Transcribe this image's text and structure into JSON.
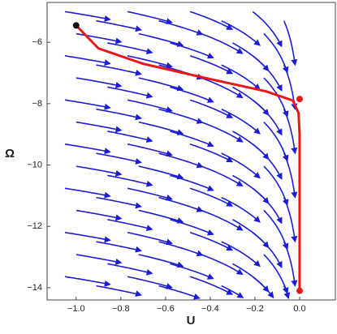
{
  "chart_data": {
    "type": "streamplot",
    "xlabel": "U",
    "ylabel": "Ω",
    "xlim": [
      -1.13,
      0.16
    ],
    "ylim": [
      -14.4,
      -4.7
    ],
    "xticks": [
      {
        "value": -1,
        "label": "−1.0"
      },
      {
        "value": -0.8,
        "label": "−0.8"
      },
      {
        "value": -0.6,
        "label": "−0.6"
      },
      {
        "value": -0.4,
        "label": "−0.4"
      },
      {
        "value": -0.2,
        "label": "−0.2"
      },
      {
        "value": 0,
        "label": "0.0"
      }
    ],
    "yticks": [
      {
        "value": -6,
        "label": "−6"
      },
      {
        "value": -8,
        "label": "−8"
      },
      {
        "value": -10,
        "label": "−10"
      },
      {
        "value": -12,
        "label": "−12"
      },
      {
        "value": -14,
        "label": "−14"
      }
    ],
    "stream_color": "#1c1cd4",
    "series": [
      {
        "color": "#e81818",
        "x": [
          -1,
          -0.9,
          -0.7,
          -0.4,
          -0.15,
          -0.03,
          -0.005,
          0,
          0
        ],
        "y": [
          -5.45,
          -6.2,
          -6.7,
          -7.2,
          -7.6,
          -7.9,
          -8.3,
          -9,
          -14.1
        ]
      },
      {
        "color": "#111111",
        "points_x": [
          -1
        ],
        "points_y": [
          -5.45
        ]
      },
      {
        "color": "#e81818",
        "points_x": [
          0,
          0
        ],
        "points_y": [
          -7.85,
          -14.1
        ]
      }
    ]
  }
}
